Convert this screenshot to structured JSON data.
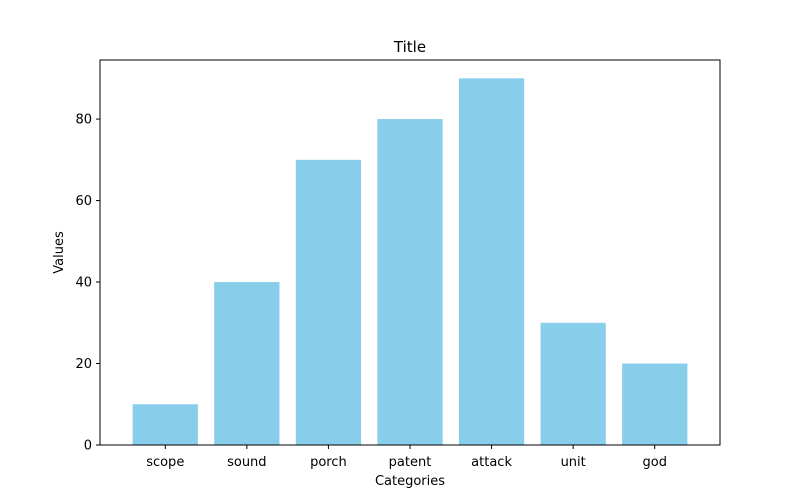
{
  "chart_data": {
    "type": "bar",
    "title": "Title",
    "xlabel": "Categories",
    "ylabel": "Values",
    "categories": [
      "scope",
      "sound",
      "porch",
      "patent",
      "attack",
      "unit",
      "god"
    ],
    "values": [
      10,
      40,
      70,
      80,
      90,
      30,
      20
    ],
    "ylim": [
      0,
      94.5
    ],
    "yticks": [
      0,
      20,
      40,
      60,
      80
    ],
    "bar_color": "#87CEEB",
    "grid": false,
    "legend": "none"
  }
}
